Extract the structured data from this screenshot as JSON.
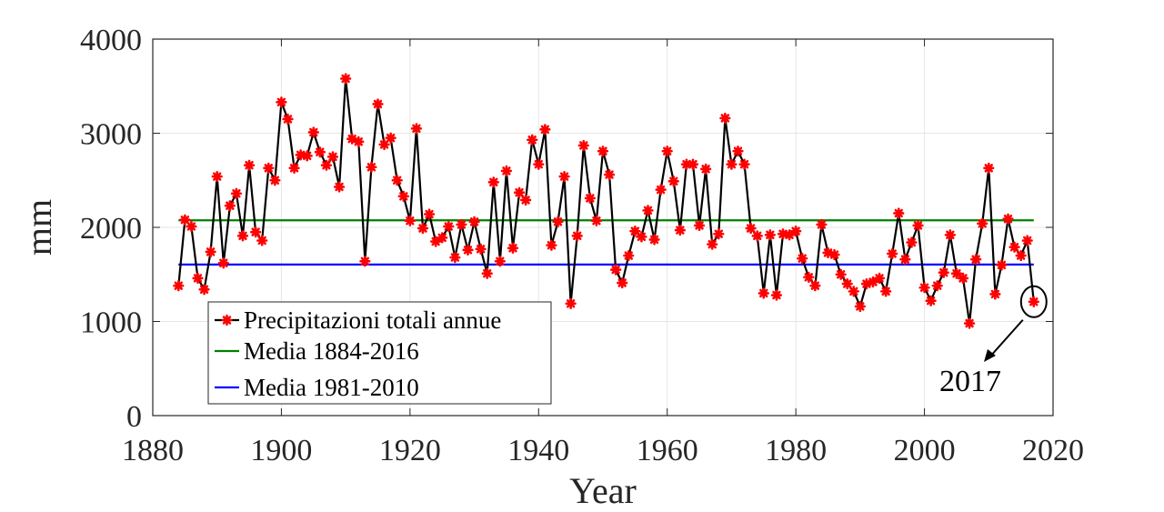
{
  "chart_data": {
    "type": "line",
    "xlabel": "Year",
    "ylabel": "mm",
    "xlim": [
      1880,
      2020
    ],
    "ylim": [
      0,
      4000
    ],
    "xticks": [
      1880,
      1900,
      1920,
      1940,
      1960,
      1980,
      2000,
      2020
    ],
    "yticks": [
      0,
      1000,
      2000,
      3000,
      4000
    ],
    "grid": true,
    "legend_position": "bottom-left",
    "series": [
      {
        "name": "Precipitazioni totali annue",
        "color": "#000000",
        "marker_color": "#ff0000",
        "marker": "asterisk",
        "x": [
          1884,
          1885,
          1886,
          1887,
          1888,
          1889,
          1890,
          1891,
          1892,
          1893,
          1894,
          1895,
          1896,
          1897,
          1898,
          1899,
          1900,
          1901,
          1902,
          1903,
          1904,
          1905,
          1906,
          1907,
          1908,
          1909,
          1910,
          1911,
          1912,
          1913,
          1914,
          1915,
          1916,
          1917,
          1918,
          1919,
          1920,
          1921,
          1922,
          1923,
          1924,
          1925,
          1926,
          1927,
          1928,
          1929,
          1930,
          1931,
          1932,
          1933,
          1934,
          1935,
          1936,
          1937,
          1938,
          1939,
          1940,
          1941,
          1942,
          1943,
          1944,
          1945,
          1946,
          1947,
          1948,
          1949,
          1950,
          1951,
          1952,
          1953,
          1954,
          1955,
          1956,
          1957,
          1958,
          1959,
          1960,
          1961,
          1962,
          1963,
          1964,
          1965,
          1966,
          1967,
          1968,
          1969,
          1970,
          1971,
          1972,
          1973,
          1974,
          1975,
          1976,
          1977,
          1978,
          1979,
          1980,
          1981,
          1982,
          1983,
          1984,
          1985,
          1986,
          1987,
          1988,
          1989,
          1990,
          1991,
          1992,
          1993,
          1994,
          1995,
          1996,
          1997,
          1998,
          1999,
          2000,
          2001,
          2002,
          2003,
          2004,
          2005,
          2006,
          2007,
          2008,
          2009,
          2010,
          2011,
          2012,
          2013,
          2014,
          2015,
          2016,
          2017
        ],
        "y": [
          1380,
          2080,
          2010,
          1460,
          1340,
          1740,
          2540,
          1620,
          2230,
          2360,
          1910,
          2660,
          1950,
          1860,
          2630,
          2500,
          3330,
          3150,
          2630,
          2770,
          2760,
          3010,
          2800,
          2660,
          2750,
          2430,
          3580,
          2940,
          2910,
          1640,
          2640,
          3310,
          2880,
          2950,
          2500,
          2330,
          2070,
          3050,
          1990,
          2140,
          1850,
          1890,
          2010,
          1680,
          2030,
          1760,
          2060,
          1770,
          1510,
          2480,
          1640,
          2600,
          1780,
          2370,
          2290,
          2930,
          2670,
          3040,
          1810,
          2060,
          2540,
          1190,
          1910,
          2870,
          2310,
          2070,
          2810,
          2560,
          1550,
          1410,
          1700,
          1960,
          1900,
          2180,
          1870,
          2400,
          2810,
          2490,
          1970,
          2670,
          2670,
          2020,
          2620,
          1820,
          1930,
          3160,
          2670,
          2810,
          2670,
          1990,
          1910,
          1300,
          1920,
          1280,
          1930,
          1920,
          1960,
          1670,
          1470,
          1380,
          2030,
          1730,
          1710,
          1500,
          1400,
          1320,
          1160,
          1400,
          1420,
          1460,
          1320,
          1720,
          2150,
          1660,
          1840,
          2020,
          1360,
          1220,
          1380,
          1520,
          1920,
          1510,
          1460,
          980,
          1660,
          2040,
          2630,
          1290,
          1600,
          2090,
          1790,
          1700,
          1860,
          1210
        ]
      },
      {
        "name": "Media 1884-2016",
        "color": "#008000",
        "x": [
          1884,
          2017
        ],
        "y": [
          2075,
          2075
        ]
      },
      {
        "name": "Media 1981-2010",
        "color": "#0000ff",
        "x": [
          1884,
          2017
        ],
        "y": [
          1605,
          1605
        ]
      }
    ],
    "annotations": [
      {
        "text": "2017",
        "x": 2017,
        "y": 1210
      }
    ]
  }
}
